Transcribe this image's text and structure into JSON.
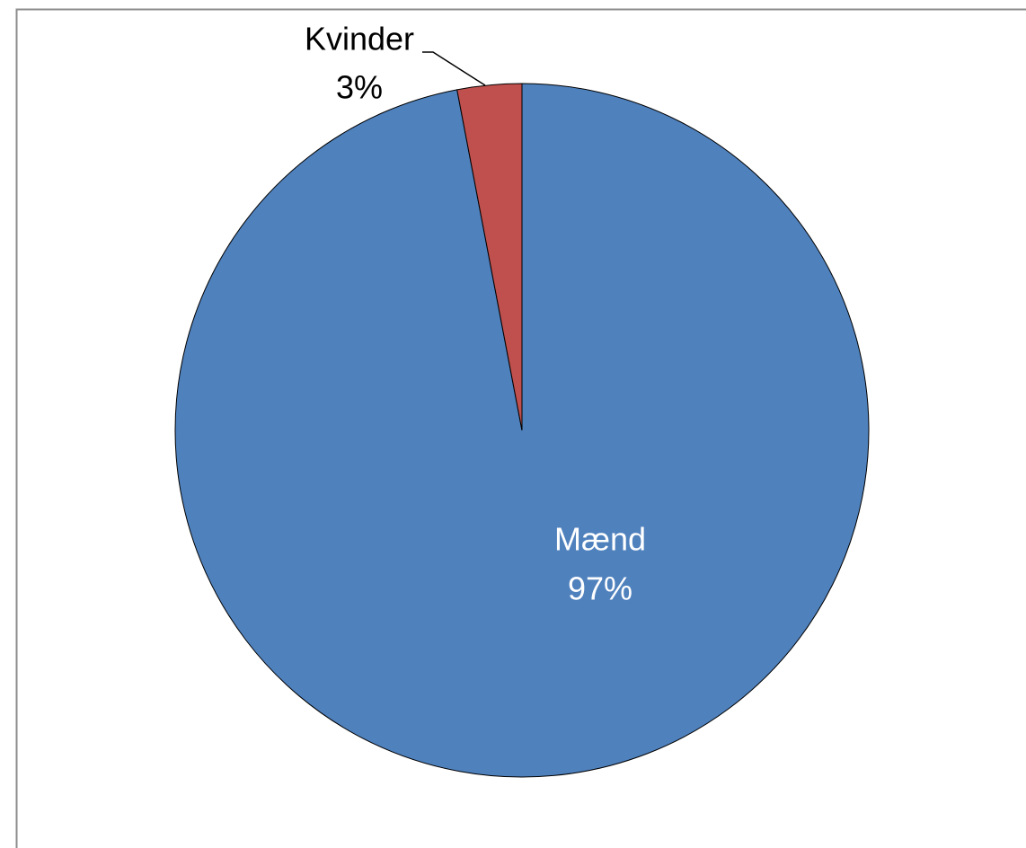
{
  "chart_data": {
    "type": "pie",
    "categories": [
      "Mænd",
      "Kvinder"
    ],
    "values": [
      97,
      3
    ],
    "value_labels": [
      "97%",
      "3%"
    ],
    "colors": [
      "#4f81bd",
      "#c0504d"
    ]
  }
}
